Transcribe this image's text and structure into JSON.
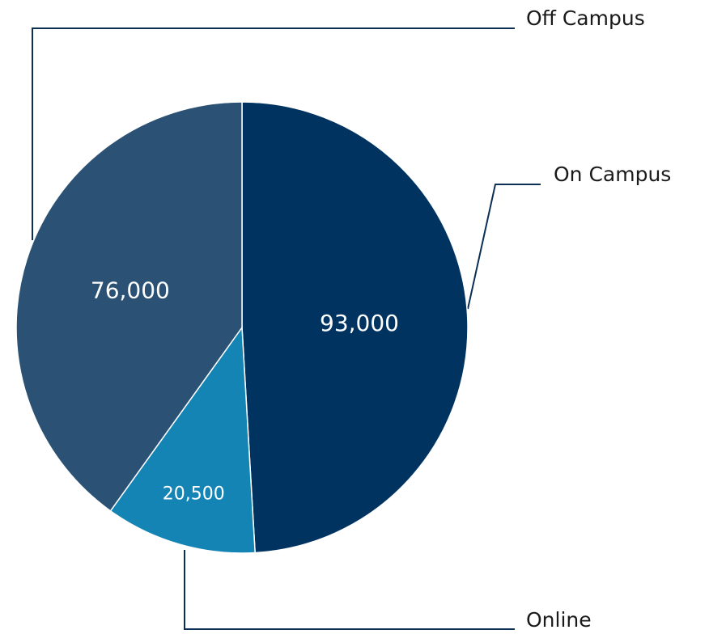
{
  "chart_data": {
    "type": "pie",
    "categories": [
      "On Campus",
      "Online",
      "Off Campus"
    ],
    "values": [
      93000,
      20500,
      76000
    ],
    "value_labels": [
      "93,000",
      "20,500",
      "76,000"
    ],
    "colors": [
      "#003360",
      "#1484b4",
      "#2b5275"
    ]
  }
}
